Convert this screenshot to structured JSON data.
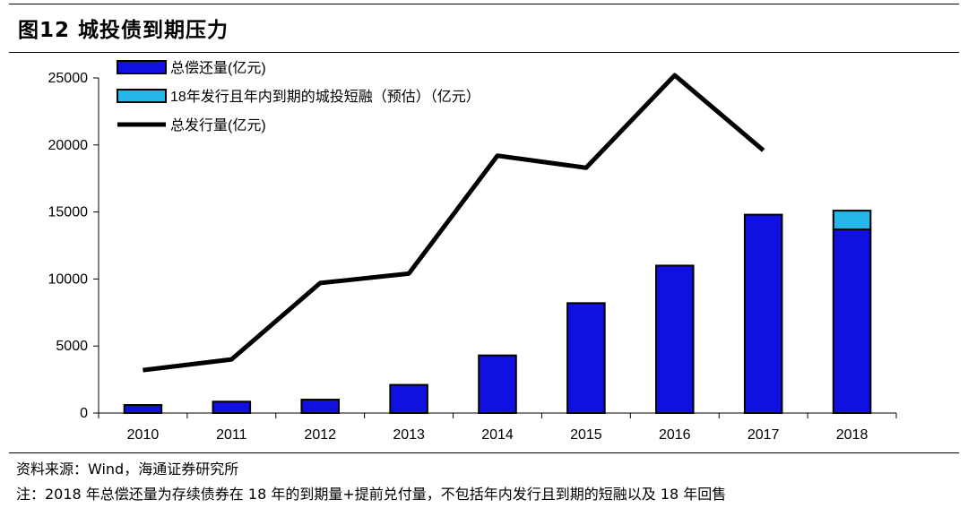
{
  "header": {
    "title": "图12 城投债到期压力"
  },
  "footer": {
    "source": "资料来源：Wind，海通证券研究所",
    "note": "注：2018 年总偿还量为存续债券在 18 年的到期量+提前兑付量，不包括年内发行且到期的短融以及 18 年回售"
  },
  "chart_data": {
    "type": "bar",
    "categories": [
      "2010",
      "2011",
      "2012",
      "2013",
      "2014",
      "2015",
      "2016",
      "2017",
      "2018"
    ],
    "series": [
      {
        "name": "总偿还量(亿元)",
        "kind": "bar",
        "stack": "a",
        "color": "#1010e0",
        "values": [
          600,
          850,
          1000,
          2100,
          4300,
          8200,
          11000,
          14800,
          13700
        ]
      },
      {
        "name": "18年发行且年内到期的城投短融（预估）（亿元）",
        "kind": "bar",
        "stack": "a",
        "color": "#25b6ea",
        "values": [
          0,
          0,
          0,
          0,
          0,
          0,
          0,
          0,
          1400
        ]
      },
      {
        "name": "总发行量(亿元)",
        "kind": "line",
        "color": "#000000",
        "values": [
          3200,
          4000,
          9700,
          10400,
          19200,
          18300,
          25200,
          19600,
          null
        ]
      }
    ],
    "ylim": [
      0,
      25000
    ],
    "yticks": [
      "0",
      "5000",
      "10000",
      "15000",
      "20000",
      "25000"
    ],
    "xlabel": "",
    "ylabel": "",
    "grid": false,
    "legend": "top-left"
  }
}
